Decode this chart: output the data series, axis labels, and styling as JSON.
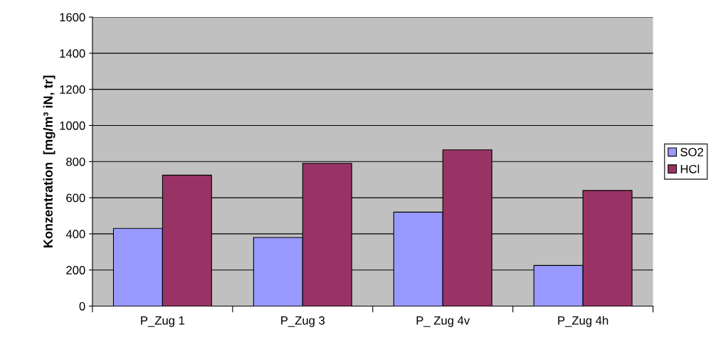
{
  "chart_data": {
    "type": "bar",
    "ylabel": "Konzentration  [mg/m³ iN, tr]",
    "categories": [
      "P_Zug 1",
      "P_Zug 3",
      "P_ Zug 4v",
      "P_Zug 4h"
    ],
    "series": [
      {
        "name": "SO2",
        "color": "#9999ff",
        "values": [
          430,
          380,
          520,
          225
        ]
      },
      {
        "name": "HCl",
        "color": "#993366",
        "values": [
          725,
          790,
          865,
          640
        ]
      }
    ],
    "ylim": [
      0,
      1600
    ],
    "yticks": [
      0,
      200,
      400,
      600,
      800,
      1000,
      1200,
      1400,
      1600
    ],
    "grid": "y",
    "legend": "right"
  }
}
